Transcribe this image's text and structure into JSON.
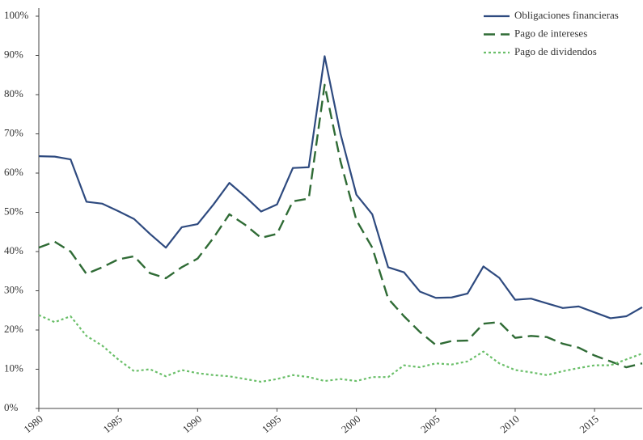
{
  "chart_data": {
    "type": "line",
    "x": [
      1980,
      1981,
      1982,
      1983,
      1984,
      1985,
      1986,
      1987,
      1988,
      1989,
      1990,
      1991,
      1992,
      1993,
      1994,
      1995,
      1996,
      1997,
      1998,
      1999,
      2000,
      2001,
      2002,
      2003,
      2004,
      2005,
      2006,
      2007,
      2008,
      2009,
      2010,
      2011,
      2012,
      2013,
      2014,
      2015,
      2016,
      2017,
      2018
    ],
    "series": [
      {
        "name": "Obligaciones financieras",
        "color": "#2e4a7f",
        "style": "solid",
        "values": [
          64.3,
          64.2,
          63.5,
          52.7,
          52.2,
          50.3,
          48.3,
          44.5,
          41,
          46.2,
          47,
          52,
          57.5,
          54,
          50.2,
          52,
          61.3,
          61.5,
          89.8,
          70,
          54.5,
          49.5,
          36,
          34.7,
          29.8,
          28.2,
          28.3,
          29.3,
          36.2,
          33.3,
          27.7,
          28,
          26.8,
          25.6,
          26,
          24.5,
          23,
          23.5,
          25.8
        ]
      },
      {
        "name": "Pago de intereses",
        "color": "#2f6b35",
        "style": "dashed",
        "values": [
          41,
          42.5,
          40,
          34.3,
          36,
          38,
          38.8,
          34.5,
          33.2,
          36,
          38.2,
          43.5,
          49.5,
          46.8,
          43.5,
          44.5,
          52.8,
          53.5,
          82.5,
          63,
          48,
          41,
          28,
          23.5,
          19.5,
          16.2,
          17.2,
          17.3,
          21.6,
          22,
          18,
          18.5,
          18.2,
          16.5,
          15.5,
          13.5,
          12,
          10.5,
          11.5
        ]
      },
      {
        "name": "Pago de dividendos",
        "color": "#6abf69",
        "style": "dotted",
        "values": [
          23.8,
          22,
          23.5,
          18.5,
          16,
          12.5,
          9.5,
          10,
          8.2,
          9.8,
          9,
          8.5,
          8.2,
          7.5,
          6.8,
          7.5,
          8.5,
          8,
          7,
          7.5,
          7,
          8,
          8,
          11,
          10.5,
          11.5,
          11.2,
          12,
          14.5,
          11.5,
          9.8,
          9.2,
          8.5,
          9.5,
          10.3,
          11,
          11,
          12.5,
          14
        ]
      }
    ],
    "xlim": [
      1980,
      2018
    ],
    "xticks": [
      1980,
      1985,
      1990,
      1995,
      2000,
      2005,
      2010,
      2015
    ],
    "ylim": [
      0,
      100
    ],
    "yticks": [
      {
        "value": 0,
        "label": "0%"
      },
      {
        "value": 10,
        "label": "10%"
      },
      {
        "value": 20,
        "label": "20%"
      },
      {
        "value": 30,
        "label": "30%"
      },
      {
        "value": 40,
        "label": "40%"
      },
      {
        "value": 50,
        "label": "50%"
      },
      {
        "value": 60,
        "label": "60%"
      },
      {
        "value": 70,
        "label": "70%"
      },
      {
        "value": 80,
        "label": "80%"
      },
      {
        "value": 90,
        "label": "90%"
      },
      {
        "value": 100,
        "label": "100%"
      }
    ],
    "legend": "upper right",
    "grid": false
  }
}
